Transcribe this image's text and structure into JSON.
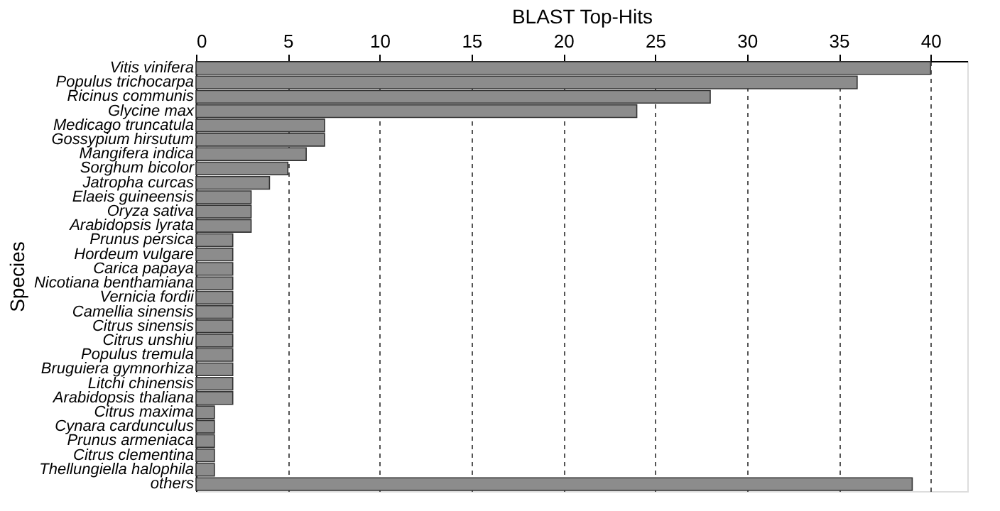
{
  "chart_data": {
    "type": "bar",
    "orientation": "horizontal",
    "xlabel": "BLAST Top-Hits",
    "ylabel": "Species",
    "categories": [
      "Vitis vinifera",
      "Populus trichocarpa",
      "Ricinus communis",
      "Glycine max",
      "Medicago truncatula",
      "Gossypium hirsutum",
      "Mangifera indica",
      "Sorghum bicolor",
      "Jatropha curcas",
      "Elaeis guineensis",
      "Oryza sativa",
      "Arabidopsis lyrata",
      "Prunus persica",
      "Hordeum vulgare",
      "Carica papaya",
      "Nicotiana benthamiana",
      "Vernicia fordii",
      "Camellia sinensis",
      "Citrus sinensis",
      "Citrus unshiu",
      "Populus tremula",
      "Bruguiera gymnorhiza",
      "Litchi chinensis",
      "Arabidopsis thaliana",
      "Citrus maxima",
      "Cynara cardunculus",
      "Prunus armeniaca",
      "Citrus clementina",
      "Thellungiella halophila",
      "others"
    ],
    "values": [
      40,
      36,
      28,
      24,
      7,
      7,
      6,
      5,
      4,
      3,
      3,
      3,
      2,
      2,
      2,
      2,
      2,
      2,
      2,
      2,
      2,
      2,
      2,
      2,
      1,
      1,
      1,
      1,
      1,
      39
    ],
    "color": "#8c8c8c",
    "xlim": [
      0,
      42
    ],
    "xticks": [
      0,
      5,
      10,
      15,
      20,
      25,
      30,
      35,
      40
    ],
    "grid": "x"
  }
}
